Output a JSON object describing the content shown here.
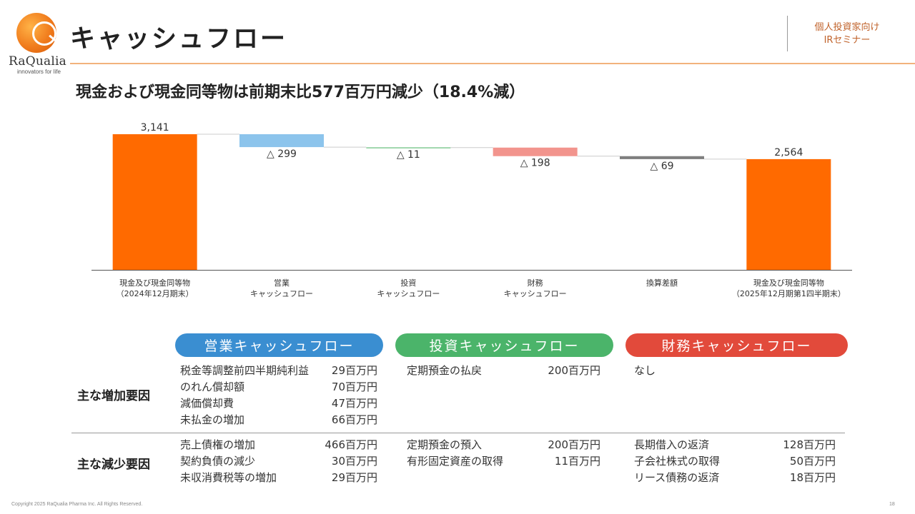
{
  "header": {
    "brand_name": "RaQualia",
    "brand_tagline": "innovators for life",
    "title": "キャッシュフロー",
    "seminar_line1": "個人投資家向け",
    "seminar_line2": "IRセミナー"
  },
  "headline": "現金および現金同等物は前期末比577百万円減少（18.4%減）",
  "colors": {
    "accent_orange": "#ff6a00",
    "operating_blue": "#8cc4ec",
    "investing_green": "#9fd7ad",
    "financing_red": "#f2948d",
    "fx_gray": "#7f7f7f",
    "pill_operating": "#3a8ed1",
    "pill_investing": "#4bb46a",
    "pill_financing": "#e24a3b"
  },
  "chart_data": {
    "type": "bar",
    "subtype": "waterfall",
    "categories": [
      [
        "現金及び現金同等物",
        "（2024年12月期末）"
      ],
      [
        "営業",
        "キャッシュフロー"
      ],
      [
        "投資",
        "キャッシュフロー"
      ],
      [
        "財務",
        "キャッシュフロー"
      ],
      [
        "換算差額"
      ],
      [
        "現金及び現金同等物",
        "（2025年12月期第1四半期末）"
      ]
    ],
    "values": [
      3141,
      -299,
      -11,
      -198,
      -69,
      2564
    ],
    "kinds": [
      "total",
      "delta",
      "delta",
      "delta",
      "delta",
      "total"
    ],
    "data_labels": [
      "3,141",
      "△ 299",
      "△ 11",
      "△ 198",
      "△ 69",
      "2,564"
    ],
    "bar_colors": [
      "#ff6a00",
      "#8cc4ec",
      "#9fd7ad",
      "#f2948d",
      "#7f7f7f",
      "#ff6a00"
    ],
    "ylim": [
      0,
      3141
    ],
    "grid": false,
    "legend": "none"
  },
  "pills": {
    "operating": "営業キャッシュフロー",
    "investing": "投資キャッシュフロー",
    "financing": "財務キャッシュフロー"
  },
  "rows": {
    "increase_label": "主な増加要因",
    "decrease_label": "主な減少要因"
  },
  "operating": {
    "increase": [
      {
        "name": "税金等調整前四半期純利益",
        "amount": "29百万円"
      },
      {
        "name": "のれん償却額",
        "amount": "70百万円"
      },
      {
        "name": "減価償却費",
        "amount": "47百万円"
      },
      {
        "name": "未払金の増加",
        "amount": "66百万円"
      }
    ],
    "decrease": [
      {
        "name": "売上債権の増加",
        "amount": "466百万円"
      },
      {
        "name": "契約負債の減少",
        "amount": "30百万円"
      },
      {
        "name": "未収消費税等の増加",
        "amount": "29百万円"
      }
    ]
  },
  "investing": {
    "increase": [
      {
        "name": "定期預金の払戻",
        "amount": "200百万円"
      }
    ],
    "decrease": [
      {
        "name": "定期預金の預入",
        "amount": "200百万円"
      },
      {
        "name": "有形固定資産の取得",
        "amount": "11百万円"
      }
    ]
  },
  "financing": {
    "increase": [
      {
        "name": "なし",
        "amount": ""
      }
    ],
    "decrease": [
      {
        "name": "長期借入の返済",
        "amount": "128百万円"
      },
      {
        "name": "子会社株式の取得",
        "amount": "50百万円"
      },
      {
        "name": "リース債務の返済",
        "amount": "18百万円"
      }
    ]
  },
  "footer": {
    "copyright": "Copyright 2025 RaQualia Pharma Inc. All Rights Reserved.",
    "page": "18"
  }
}
